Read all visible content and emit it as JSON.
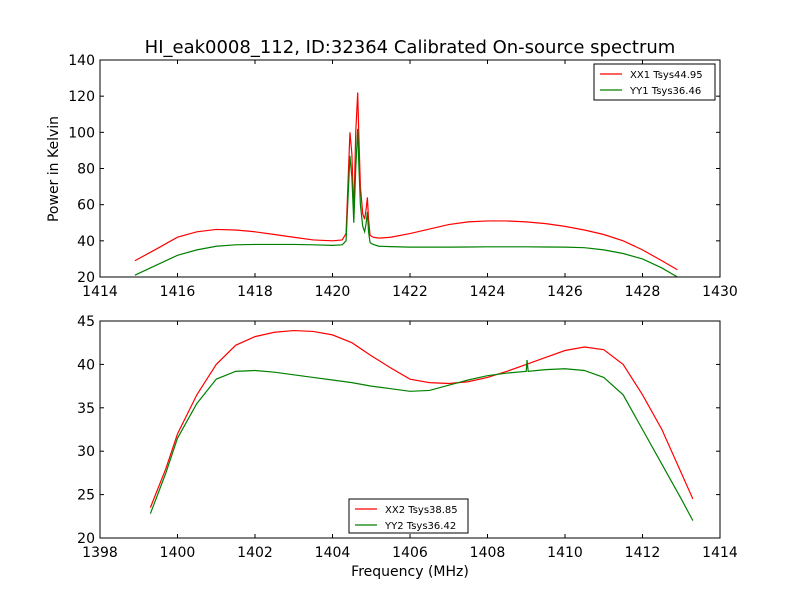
{
  "chart_data": [
    {
      "type": "line",
      "title": "HI_eak0008_112, ID:32364 Calibrated On-source spectrum",
      "xlabel": "",
      "ylabel": "Power in Kelvin",
      "xlim": [
        1414,
        1430
      ],
      "ylim": [
        20,
        140
      ],
      "xticks": [
        "1414",
        "1416",
        "1418",
        "1420",
        "1422",
        "1424",
        "1426",
        "1428",
        "1430"
      ],
      "yticks": [
        "20",
        "40",
        "60",
        "80",
        "100",
        "120",
        "140"
      ],
      "legend_position": "top-right",
      "series": [
        {
          "name": "XX1 Tsys44.95",
          "color": "#ff0000",
          "x": [
            1414.9,
            1415.5,
            1416.0,
            1416.5,
            1417.0,
            1417.5,
            1418.0,
            1418.5,
            1419.0,
            1419.5,
            1420.0,
            1420.25,
            1420.35,
            1420.45,
            1420.5,
            1420.55,
            1420.6,
            1420.65,
            1420.68,
            1420.72,
            1420.78,
            1420.83,
            1420.87,
            1420.9,
            1420.93,
            1420.97,
            1421.05,
            1421.2,
            1421.5,
            1422.0,
            1422.5,
            1423.0,
            1423.5,
            1424.0,
            1424.5,
            1425.0,
            1425.5,
            1426.0,
            1426.5,
            1427.0,
            1427.5,
            1428.0,
            1428.5,
            1428.9
          ],
          "y": [
            29,
            36,
            42,
            45,
            46.3,
            46,
            45,
            43.5,
            42,
            40.5,
            40,
            40.5,
            44,
            100,
            88,
            55,
            100,
            122,
            98,
            70,
            55,
            52,
            58,
            64,
            52,
            43,
            42,
            41.5,
            42,
            44,
            46.5,
            49,
            50.5,
            51,
            51,
            50.5,
            49.5,
            48,
            46,
            43.5,
            40,
            35,
            29,
            24
          ]
        },
        {
          "name": "YY1 Tsys36.46",
          "color": "#008000",
          "x": [
            1414.9,
            1415.5,
            1416.0,
            1416.5,
            1417.0,
            1417.5,
            1418.0,
            1418.5,
            1419.0,
            1419.5,
            1420.0,
            1420.25,
            1420.35,
            1420.45,
            1420.5,
            1420.55,
            1420.6,
            1420.65,
            1420.68,
            1420.72,
            1420.78,
            1420.83,
            1420.87,
            1420.9,
            1420.93,
            1420.97,
            1421.05,
            1421.2,
            1421.5,
            1422.0,
            1422.5,
            1423.0,
            1423.5,
            1424.0,
            1424.5,
            1425.0,
            1425.5,
            1426.0,
            1426.5,
            1427.0,
            1427.5,
            1428.0,
            1428.5,
            1428.9
          ],
          "y": [
            21,
            27,
            32,
            35,
            37,
            37.8,
            38,
            38,
            38,
            37.8,
            37.5,
            37.8,
            40,
            87,
            75,
            50,
            80,
            102,
            82,
            60,
            48,
            45,
            50,
            56,
            45,
            39,
            38,
            37,
            36.8,
            36.5,
            36.5,
            36.5,
            36.6,
            36.7,
            36.7,
            36.7,
            36.6,
            36.5,
            36.2,
            35,
            33,
            30,
            25,
            20
          ]
        }
      ]
    },
    {
      "type": "line",
      "title": "",
      "xlabel": "Frequency (MHz)",
      "ylabel": "",
      "xlim": [
        1398,
        1414
      ],
      "ylim": [
        20,
        45
      ],
      "xticks": [
        "1398",
        "1400",
        "1402",
        "1404",
        "1406",
        "1408",
        "1410",
        "1412",
        "1414"
      ],
      "yticks": [
        "20",
        "25",
        "30",
        "35",
        "40",
        "45"
      ],
      "legend_position": "lower-center",
      "series": [
        {
          "name": "XX2 Tsys38.85",
          "color": "#ff0000",
          "x": [
            1399.3,
            1399.7,
            1400.0,
            1400.5,
            1401.0,
            1401.5,
            1402.0,
            1402.5,
            1403.0,
            1403.5,
            1404.0,
            1404.5,
            1405.0,
            1405.5,
            1406.0,
            1406.5,
            1407.0,
            1407.5,
            1408.0,
            1408.5,
            1409.0,
            1409.5,
            1410.0,
            1410.5,
            1411.0,
            1411.5,
            1412.0,
            1412.5,
            1413.0,
            1413.3
          ],
          "y": [
            23.5,
            28,
            32,
            36.5,
            40,
            42.2,
            43.2,
            43.7,
            43.9,
            43.8,
            43.4,
            42.5,
            41,
            39.6,
            38.3,
            37.9,
            37.8,
            38,
            38.5,
            39.2,
            40,
            40.8,
            41.6,
            42,
            41.7,
            40,
            36.5,
            32.5,
            27.5,
            24.5
          ]
        },
        {
          "name": "YY2 Tsys36.42",
          "color": "#008000",
          "x": [
            1399.3,
            1399.7,
            1400.0,
            1400.5,
            1401.0,
            1401.5,
            1402.0,
            1402.5,
            1403.0,
            1403.5,
            1404.0,
            1404.5,
            1405.0,
            1405.5,
            1406.0,
            1406.5,
            1407.0,
            1407.5,
            1408.0,
            1408.5,
            1409.0,
            1409.02,
            1409.05,
            1409.5,
            1410.0,
            1410.5,
            1411.0,
            1411.5,
            1412.0,
            1412.5,
            1413.0,
            1413.3
          ],
          "y": [
            22.8,
            27.5,
            31.5,
            35.5,
            38.3,
            39.2,
            39.3,
            39.1,
            38.8,
            38.5,
            38.2,
            37.9,
            37.5,
            37.2,
            36.9,
            37,
            37.6,
            38.2,
            38.7,
            39,
            39.2,
            40.5,
            39.2,
            39.4,
            39.5,
            39.3,
            38.5,
            36.5,
            32.5,
            28.5,
            24.5,
            22
          ]
        }
      ]
    }
  ]
}
